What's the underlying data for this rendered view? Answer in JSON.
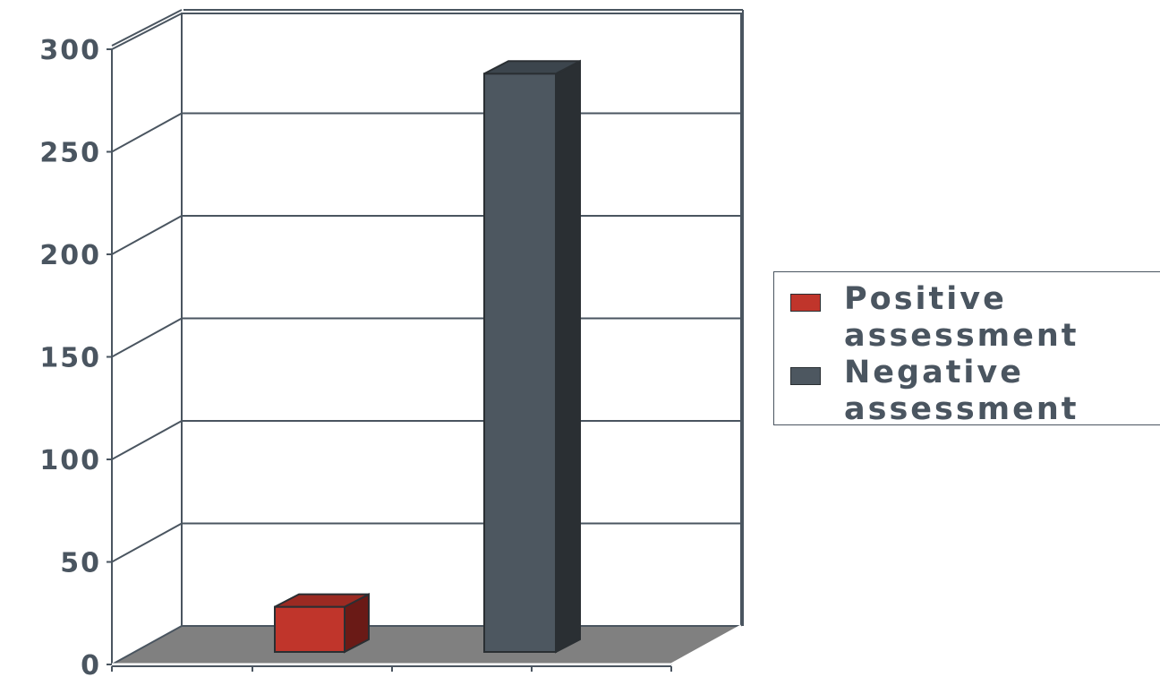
{
  "chart_data": {
    "type": "bar",
    "style": "3d-column",
    "categories": [
      ""
    ],
    "series": [
      {
        "name": "Positive assessment",
        "values": [
          22
        ],
        "color": "#c0352b"
      },
      {
        "name": "Negative assessment",
        "values": [
          282
        ],
        "color": "#4d5760"
      }
    ],
    "ylim": [
      0,
      300
    ],
    "y_ticks": [
      "0",
      "50",
      "100",
      "150",
      "200",
      "250",
      "300"
    ],
    "grid": true,
    "legend_position": "right",
    "colors": {
      "axis": "#4a5560",
      "floor": "#808080",
      "grid": "#4a5560"
    }
  }
}
